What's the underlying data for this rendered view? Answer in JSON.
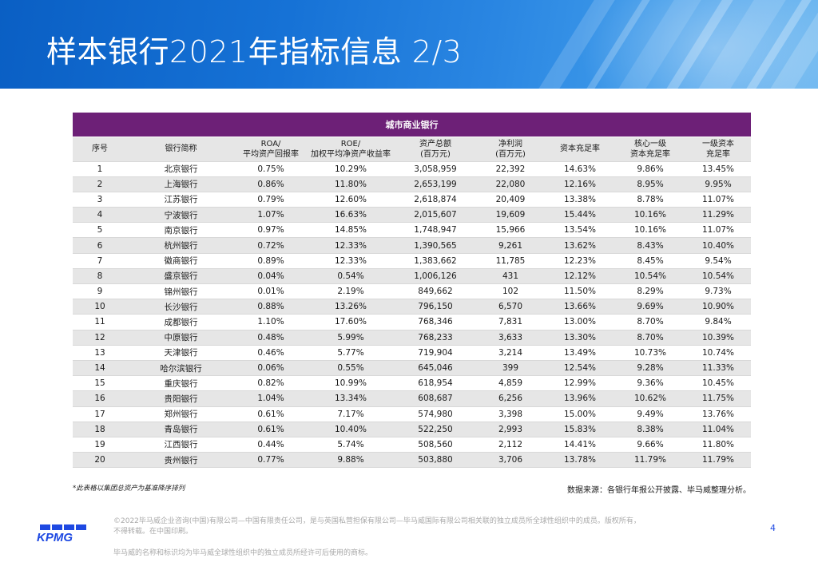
{
  "page": {
    "title": "样本银行2021年指标信息 2/3",
    "page_number": "4"
  },
  "table": {
    "group_title": "城市商业银行",
    "headers": [
      [
        "序号"
      ],
      [
        "银行简称"
      ],
      [
        "ROA/",
        "平均资产回报率"
      ],
      [
        "ROE/",
        "加权平均净资产收益率"
      ],
      [
        "资产总额",
        "(百万元)"
      ],
      [
        "净利润",
        "(百万元)"
      ],
      [
        "资本充足率"
      ],
      [
        "核心一级",
        "资本充足率"
      ],
      [
        "一级资本",
        "充足率"
      ]
    ],
    "rows": [
      [
        "1",
        "北京银行",
        "0.75%",
        "10.29%",
        "3,058,959",
        "22,392",
        "14.63%",
        "9.86%",
        "13.45%"
      ],
      [
        "2",
        "上海银行",
        "0.86%",
        "11.80%",
        "2,653,199",
        "22,080",
        "12.16%",
        "8.95%",
        "9.95%"
      ],
      [
        "3",
        "江苏银行",
        "0.79%",
        "12.60%",
        "2,618,874",
        "20,409",
        "13.38%",
        "8.78%",
        "11.07%"
      ],
      [
        "4",
        "宁波银行",
        "1.07%",
        "16.63%",
        "2,015,607",
        "19,609",
        "15.44%",
        "10.16%",
        "11.29%"
      ],
      [
        "5",
        "南京银行",
        "0.97%",
        "14.85%",
        "1,748,947",
        "15,966",
        "13.54%",
        "10.16%",
        "11.07%"
      ],
      [
        "6",
        "杭州银行",
        "0.72%",
        "12.33%",
        "1,390,565",
        "9,261",
        "13.62%",
        "8.43%",
        "10.40%"
      ],
      [
        "7",
        "徽商银行",
        "0.89%",
        "12.33%",
        "1,383,662",
        "11,785",
        "12.23%",
        "8.45%",
        "9.54%"
      ],
      [
        "8",
        "盛京银行",
        "0.04%",
        "0.54%",
        "1,006,126",
        "431",
        "12.12%",
        "10.54%",
        "10.54%"
      ],
      [
        "9",
        "锦州银行",
        "0.01%",
        "2.19%",
        "849,662",
        "102",
        "11.50%",
        "8.29%",
        "9.73%"
      ],
      [
        "10",
        "长沙银行",
        "0.88%",
        "13.26%",
        "796,150",
        "6,570",
        "13.66%",
        "9.69%",
        "10.90%"
      ],
      [
        "11",
        "成都银行",
        "1.10%",
        "17.60%",
        "768,346",
        "7,831",
        "13.00%",
        "8.70%",
        "9.84%"
      ],
      [
        "12",
        "中原银行",
        "0.48%",
        "5.99%",
        "768,233",
        "3,633",
        "13.30%",
        "8.70%",
        "10.39%"
      ],
      [
        "13",
        "天津银行",
        "0.46%",
        "5.77%",
        "719,904",
        "3,214",
        "13.49%",
        "10.73%",
        "10.74%"
      ],
      [
        "14",
        "哈尔滨银行",
        "0.06%",
        "0.55%",
        "645,046",
        "399",
        "12.54%",
        "9.28%",
        "11.33%"
      ],
      [
        "15",
        "重庆银行",
        "0.82%",
        "10.99%",
        "618,954",
        "4,859",
        "12.99%",
        "9.36%",
        "10.45%"
      ],
      [
        "16",
        "贵阳银行",
        "1.04%",
        "13.34%",
        "608,687",
        "6,256",
        "13.96%",
        "10.62%",
        "11.75%"
      ],
      [
        "17",
        "郑州银行",
        "0.61%",
        "7.17%",
        "574,980",
        "3,398",
        "15.00%",
        "9.49%",
        "13.76%"
      ],
      [
        "18",
        "青岛银行",
        "0.61%",
        "10.40%",
        "522,250",
        "2,993",
        "15.83%",
        "8.38%",
        "11.04%"
      ],
      [
        "19",
        "江西银行",
        "0.44%",
        "5.74%",
        "508,560",
        "2,112",
        "14.41%",
        "9.66%",
        "11.80%"
      ],
      [
        "20",
        "贵州银行",
        "0.77%",
        "9.88%",
        "503,880",
        "3,706",
        "13.78%",
        "11.79%",
        "11.79%"
      ]
    ]
  },
  "notes": {
    "footnote": "*此表格以集团总资产为基准降序排列",
    "source": "数据来源：各银行年报公开披露、毕马威整理分析。"
  },
  "footer": {
    "logo_text": "KPMG",
    "copyright_line1": "©2022毕马威企业咨询(中国)有限公司—中国有限责任公司，是与英国私营担保有限公司—毕马威国际有限公司相关联的独立成员所全球性组织中的成员。版权所有，",
    "copyright_line2": "不得转载。在中国印刷。",
    "trademark": "毕马威的名称和标识均为毕马威全球性组织中的独立成员所经许可后使用的商标。"
  },
  "colors": {
    "banner": "#1672d6",
    "table_header": "#6d2077",
    "stripe_row": "#e6e6e6",
    "kpmg_blue": "#1e49e2"
  }
}
